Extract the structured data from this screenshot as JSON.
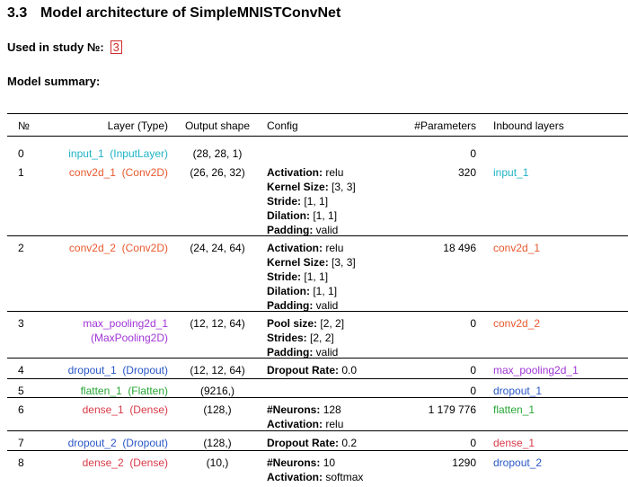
{
  "heading": {
    "number": "3.3",
    "title": "Model architecture of SimpleMNISTConvNet"
  },
  "study": {
    "label": "Used in study №:",
    "value": "3"
  },
  "summary_label": "Model summary:",
  "columns": {
    "no": "№",
    "layer": "Layer (Type)",
    "shape": "Output shape",
    "config": "Config",
    "params": "#Parameters",
    "inbound": "Inbound layers"
  },
  "type_colors": {
    "input": "#1fb3c4",
    "conv": "#e8592e",
    "pool": "#a136d6",
    "dropout": "#2957c7",
    "flatten": "#27a636",
    "dense": "#d83a48"
  },
  "rows": [
    {
      "no": "0",
      "name": "input_1",
      "type": "(InputLayer)",
      "shape": "(28, 28, 1)",
      "config": [],
      "params": "0",
      "inbound": ""
    },
    {
      "no": "1",
      "name": "conv2d_1",
      "type": "(Conv2D)",
      "shape": "(26, 26, 32)",
      "config": [
        {
          "k": "Activation:",
          "v": "relu"
        },
        {
          "k": "Kernel Size:",
          "v": "[3, 3]"
        },
        {
          "k": "Stride:",
          "v": "[1, 1]"
        },
        {
          "k": "Dilation:",
          "v": "[1, 1]"
        },
        {
          "k": "Padding:",
          "v": "valid"
        }
      ],
      "params": "320",
      "inbound": "input_1"
    },
    {
      "no": "2",
      "name": "conv2d_2",
      "type": "(Conv2D)",
      "shape": "(24, 24, 64)",
      "config": [
        {
          "k": "Activation:",
          "v": "relu"
        },
        {
          "k": "Kernel Size:",
          "v": "[3, 3]"
        },
        {
          "k": "Stride:",
          "v": "[1, 1]"
        },
        {
          "k": "Dilation:",
          "v": "[1, 1]"
        },
        {
          "k": "Padding:",
          "v": "valid"
        }
      ],
      "params": "18 496",
      "inbound": "conv2d_1"
    },
    {
      "no": "3",
      "name": "max_pooling2d_1",
      "type": "(MaxPooling2D)",
      "shape": "(12, 12, 64)",
      "config": [
        {
          "k": "Pool size:",
          "v": "[2, 2]"
        },
        {
          "k": "Strides:",
          "v": "[2, 2]"
        },
        {
          "k": "Padding:",
          "v": "valid"
        }
      ],
      "params": "0",
      "inbound": "conv2d_2"
    },
    {
      "no": "4",
      "name": "dropout_1",
      "type": "(Dropout)",
      "shape": "(12, 12, 64)",
      "config": [
        {
          "k": "Dropout Rate:",
          "v": "0.0"
        }
      ],
      "params": "0",
      "inbound": "max_pooling2d_1"
    },
    {
      "no": "5",
      "name": "flatten_1",
      "type": "(Flatten)",
      "shape": "(9216,)",
      "config": [],
      "params": "0",
      "inbound": "dropout_1"
    },
    {
      "no": "6",
      "name": "dense_1",
      "type": "(Dense)",
      "shape": "(128,)",
      "config": [
        {
          "k": "#Neurons:",
          "v": "128"
        },
        {
          "k": "Activation:",
          "v": "relu"
        }
      ],
      "params": "1 179 776",
      "inbound": "flatten_1"
    },
    {
      "no": "7",
      "name": "dropout_2",
      "type": "(Dropout)",
      "shape": "(128,)",
      "config": [
        {
          "k": "Dropout Rate:",
          "v": "0.2"
        }
      ],
      "params": "0",
      "inbound": "dense_1"
    },
    {
      "no": "8",
      "name": "dense_2",
      "type": "(Dense)",
      "shape": "(10,)",
      "config": [
        {
          "k": "#Neurons:",
          "v": "10"
        },
        {
          "k": "Activation:",
          "v": "softmax"
        }
      ],
      "params": "1290",
      "inbound": "dropout_2"
    }
  ]
}
